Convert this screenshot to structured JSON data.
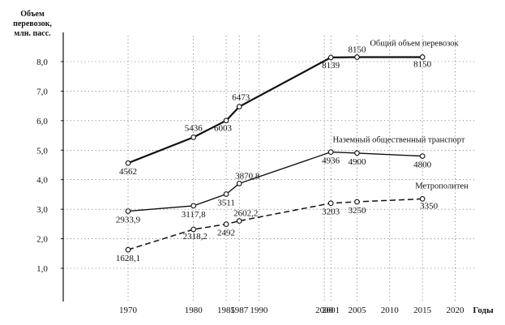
{
  "chart_data": {
    "type": "line",
    "ylabel": [
      "Объем",
      "перевозок,",
      "млн. пасс."
    ],
    "xlabel": "Годы",
    "xlim": [
      1965,
      2020
    ],
    "ylim": [
      0,
      8.7
    ],
    "x_ticks": [
      1970,
      1980,
      1985,
      1987,
      1990,
      2000,
      2001,
      2005,
      2010,
      2015,
      2020
    ],
    "y_ticks": [
      {
        "value": 1,
        "label": "1,0"
      },
      {
        "value": 2,
        "label": "2,0"
      },
      {
        "value": 3,
        "label": "3,0"
      },
      {
        "value": 4,
        "label": "4,0"
      },
      {
        "value": 5,
        "label": "5,0"
      },
      {
        "value": 6,
        "label": "6,0"
      },
      {
        "value": 7,
        "label": "7,0"
      },
      {
        "value": 8,
        "label": "8,0"
      }
    ],
    "grid": "dashed",
    "series": [
      {
        "name": "Общий объем перевозок",
        "line_style": "solid-bold",
        "points": [
          {
            "x": 1970,
            "y": 4.562,
            "label": "4562"
          },
          {
            "x": 1980,
            "y": 5.436,
            "label": "5436"
          },
          {
            "x": 1985,
            "y": 6.003,
            "label": "6003"
          },
          {
            "x": 1987,
            "y": 6.473,
            "label": "6473"
          },
          {
            "x": 2001,
            "y": 8.139,
            "label": "8139"
          },
          {
            "x": 2005,
            "y": 8.15,
            "label": "8150"
          },
          {
            "x": 2015,
            "y": 8.15,
            "label": "8150"
          }
        ]
      },
      {
        "name": "Наземный общественный транспорт",
        "line_style": "solid",
        "points": [
          {
            "x": 1970,
            "y": 2.9339,
            "label": "2933,9"
          },
          {
            "x": 1980,
            "y": 3.1178,
            "label": "3117,8"
          },
          {
            "x": 1985,
            "y": 3.511,
            "label": "3511"
          },
          {
            "x": 1987,
            "y": 3.8708,
            "label": "3870,8"
          },
          {
            "x": 2001,
            "y": 4.936,
            "label": "4936"
          },
          {
            "x": 2005,
            "y": 4.9,
            "label": "4900"
          },
          {
            "x": 2015,
            "y": 4.8,
            "label": "4800"
          }
        ]
      },
      {
        "name": "Метрополитен",
        "line_style": "dashed",
        "points": [
          {
            "x": 1970,
            "y": 1.6281,
            "label": "1628,1"
          },
          {
            "x": 1980,
            "y": 2.3182,
            "label": "2318,2"
          },
          {
            "x": 1985,
            "y": 2.492,
            "label": "2492"
          },
          {
            "x": 1987,
            "y": 2.6022,
            "label": "2602,2"
          },
          {
            "x": 2001,
            "y": 3.203,
            "label": "3203"
          },
          {
            "x": 2005,
            "y": 3.25,
            "label": "3250"
          },
          {
            "x": 2015,
            "y": 3.35,
            "label": "3350"
          }
        ]
      }
    ]
  }
}
